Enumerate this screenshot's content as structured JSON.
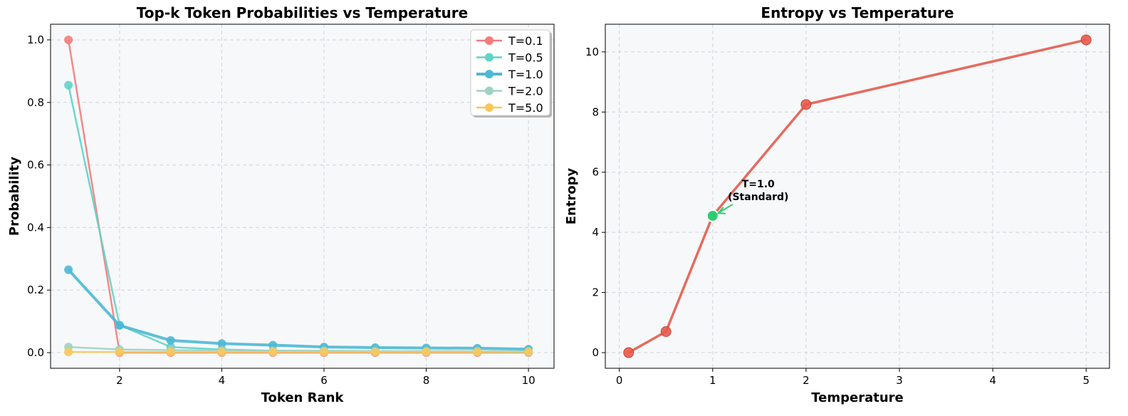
{
  "chart_data": [
    {
      "type": "line",
      "title": "Top-k Token Probabilities vs Temperature",
      "xlabel": "Token Rank",
      "ylabel": "Probability",
      "xlim": [
        0.65,
        10.5
      ],
      "ylim": [
        -0.05,
        1.05
      ],
      "xticks": [
        2,
        4,
        6,
        8,
        10
      ],
      "yticks": [
        0.0,
        0.2,
        0.4,
        0.6,
        0.8,
        1.0
      ],
      "xtick_labels": [
        "2",
        "4",
        "6",
        "8",
        "10"
      ],
      "ytick_labels": [
        "0.0",
        "0.2",
        "0.4",
        "0.6",
        "0.8",
        "1.0"
      ],
      "grid": true,
      "legend_position": "top-right",
      "x": [
        1,
        2,
        3,
        4,
        5,
        6,
        7,
        8,
        9,
        10
      ],
      "series": [
        {
          "name": "T=0.1",
          "color": "#f47c7c",
          "emphasis": false,
          "values": [
            1.0,
            0.0,
            0.0,
            0.0,
            0.0,
            0.0,
            0.0,
            0.0,
            0.0,
            0.0
          ]
        },
        {
          "name": "T=0.5",
          "color": "#5fd3c8",
          "emphasis": false,
          "values": [
            0.855,
            0.088,
            0.018,
            0.01,
            0.006,
            0.004,
            0.003,
            0.002,
            0.002,
            0.001
          ]
        },
        {
          "name": "T=1.0",
          "color": "#4db8d4",
          "emphasis": true,
          "values": [
            0.265,
            0.087,
            0.039,
            0.029,
            0.024,
            0.018,
            0.016,
            0.015,
            0.014,
            0.011
          ]
        },
        {
          "name": "T=2.0",
          "color": "#9fd3bf",
          "emphasis": false,
          "values": [
            0.018,
            0.01,
            0.008,
            0.007,
            0.006,
            0.006,
            0.005,
            0.005,
            0.005,
            0.004
          ]
        },
        {
          "name": "T=5.0",
          "color": "#f9c85a",
          "emphasis": false,
          "values": [
            0.002,
            0.002,
            0.002,
            0.002,
            0.002,
            0.002,
            0.002,
            0.002,
            0.002,
            0.002
          ]
        }
      ]
    },
    {
      "type": "line",
      "title": "Entropy vs Temperature",
      "xlabel": "Temperature",
      "ylabel": "Entropy",
      "xlim": [
        -0.15,
        5.25
      ],
      "ylim": [
        -0.52,
        10.92
      ],
      "xticks": [
        0,
        1,
        2,
        3,
        4,
        5
      ],
      "yticks": [
        0,
        2,
        4,
        6,
        8,
        10
      ],
      "xtick_labels": [
        "0",
        "1",
        "2",
        "3",
        "4",
        "5"
      ],
      "ytick_labels": [
        "0",
        "2",
        "4",
        "6",
        "8",
        "10"
      ],
      "grid": true,
      "x": [
        0.1,
        0.5,
        1.0,
        2.0,
        5.0
      ],
      "series": [
        {
          "color": "#e56b5d",
          "values": [
            0.0,
            0.7,
            4.55,
            8.25,
            10.4
          ]
        }
      ],
      "highlight": {
        "x": 1.0,
        "y": 4.55,
        "color": "#2ecc71"
      },
      "annotation": {
        "line1": "T=1.0",
        "line2": "(Standard)"
      }
    }
  ]
}
